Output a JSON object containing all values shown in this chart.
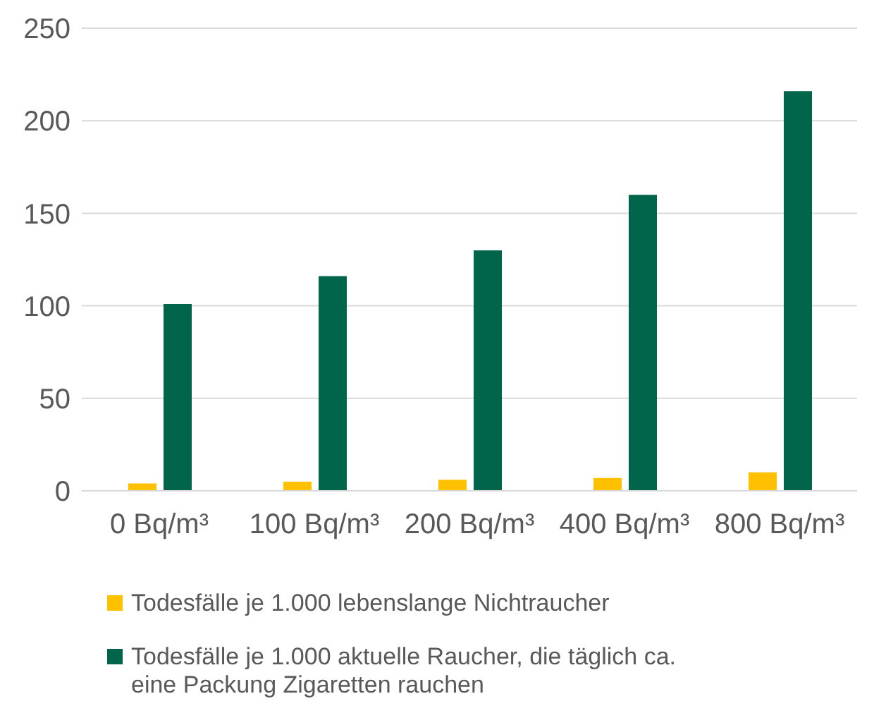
{
  "chart_data": {
    "type": "bar",
    "categories": [
      "0 Bq/m³",
      "100 Bq/m³",
      "200 Bq/m³",
      "400 Bq/m³",
      "800 Bq/m³"
    ],
    "series": [
      {
        "name": "Todesfälle je 1.000 lebenslange Nichtraucher",
        "color": "#ffc000",
        "values": [
          4,
          5,
          6,
          7,
          10
        ]
      },
      {
        "name": "Todesfälle je 1.000 aktuelle Raucher, die täglich ca. eine Packung Zigaretten rauchen",
        "color": "#00654b",
        "values": [
          101,
          116,
          130,
          160,
          216
        ]
      }
    ],
    "ylim": [
      0,
      250
    ],
    "yticks": [
      0,
      50,
      100,
      150,
      200,
      250
    ],
    "grid": "y",
    "legend": "bottom"
  }
}
